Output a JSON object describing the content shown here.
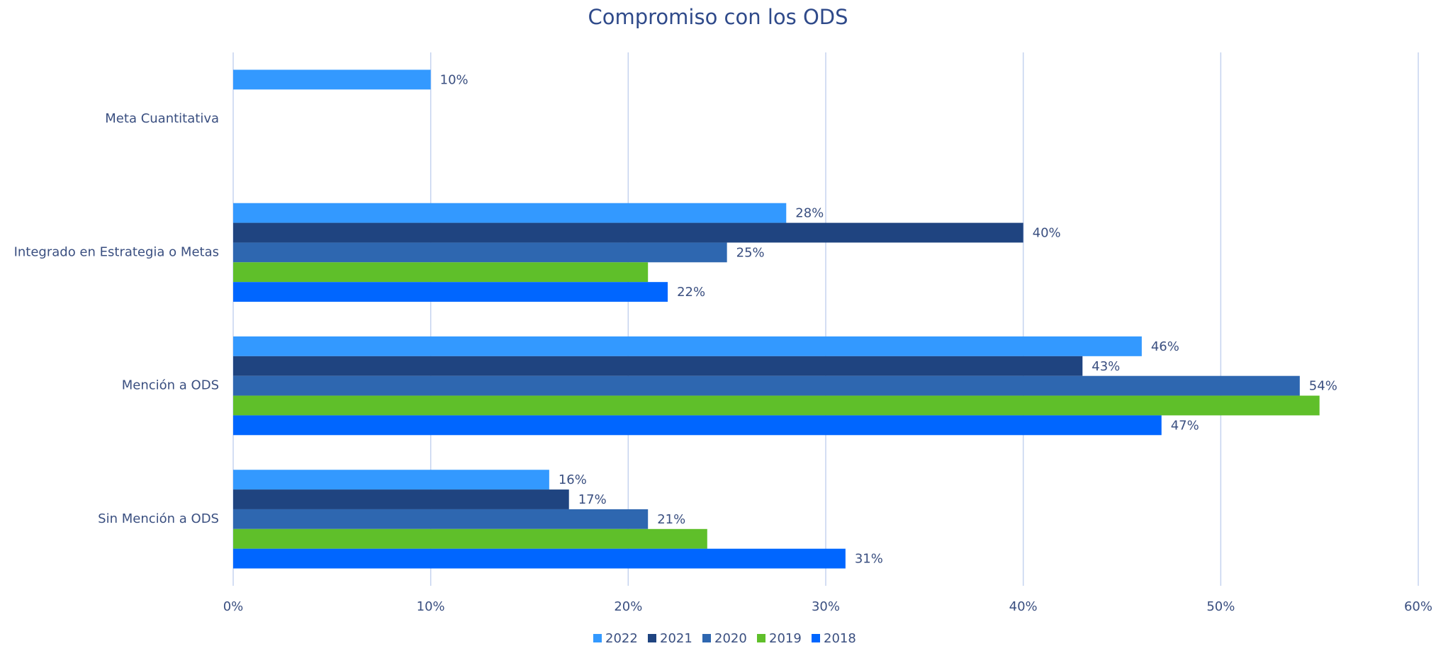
{
  "chart_data": {
    "type": "hbar",
    "title": "Compromiso con los ODS",
    "categories": [
      "Meta Cuantitativa",
      "Integrado en Estrategia o Metas",
      "Mención a ODS",
      "Sin Mención a ODS"
    ],
    "series": [
      {
        "name": "2022",
        "color": "#3399ff",
        "values": [
          10,
          28,
          46,
          16
        ],
        "value_labels": [
          "10%",
          "28%",
          "46%",
          "16%"
        ]
      },
      {
        "name": "2021",
        "color": "#1f4480",
        "values": [
          null,
          40,
          43,
          17
        ],
        "value_labels": [
          null,
          "40%",
          "43%",
          "17%"
        ]
      },
      {
        "name": "2020",
        "color": "#2e67b0",
        "values": [
          null,
          25,
          54,
          21
        ],
        "value_labels": [
          null,
          "25%",
          "54%",
          "21%"
        ]
      },
      {
        "name": "2019",
        "color": "#5fbf2a",
        "values": [
          null,
          21,
          55,
          24
        ],
        "value_labels": [
          null,
          null,
          null,
          null
        ]
      },
      {
        "name": "2018",
        "color": "#0066ff",
        "values": [
          null,
          22,
          47,
          31
        ],
        "value_labels": [
          null,
          "22%",
          "47%",
          "31%"
        ]
      }
    ],
    "xlim": [
      0,
      60
    ],
    "xticks": [
      {
        "value": 0,
        "label": "0%"
      },
      {
        "value": 10,
        "label": "10%"
      },
      {
        "value": 20,
        "label": "20%"
      },
      {
        "value": 30,
        "label": "30%"
      },
      {
        "value": 40,
        "label": "40%"
      },
      {
        "value": 50,
        "label": "50%"
      },
      {
        "value": 60,
        "label": "60%"
      }
    ],
    "grid": true,
    "legend": "bottom"
  }
}
